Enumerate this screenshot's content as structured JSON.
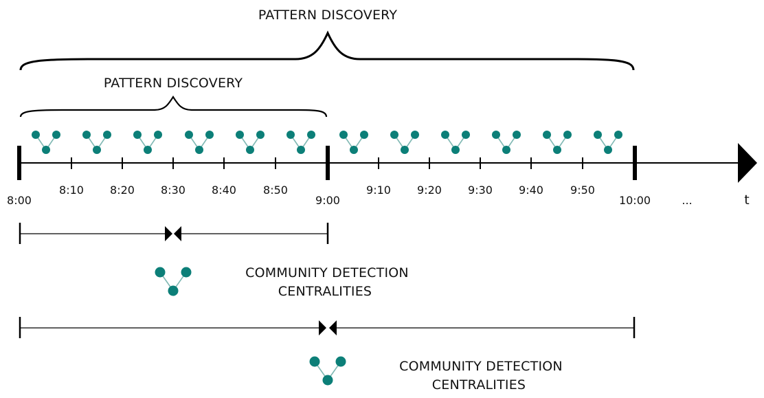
{
  "colors": {
    "line": "#000000",
    "node": "#0c7f78",
    "edge": "#7fb8b3",
    "background": "#ffffff"
  },
  "brace_labels": {
    "outer": "PATTERN DISCOVERY",
    "inner": "PATTERN DISCOVERY"
  },
  "timeline": {
    "hour_labels": [
      "8:00",
      "9:00",
      "10:00"
    ],
    "minor_labels_first": [
      "8:10",
      "8:20",
      "8:30",
      "8:40",
      "8:50"
    ],
    "minor_labels_second": [
      "9:10",
      "9:20",
      "9:30",
      "9:40",
      "9:50"
    ],
    "ellipsis": "...",
    "axis_label": "t"
  },
  "windows": [
    {
      "label_line1": "COMMUNITY DETECTION",
      "label_line2": "CENTRALITIES"
    },
    {
      "label_line1": "COMMUNITY DETECTION",
      "label_line2": "CENTRALITIES"
    }
  ],
  "icons": {
    "graph_glyph": "three-node-graph-icon",
    "graph_glyph_count": 12
  }
}
